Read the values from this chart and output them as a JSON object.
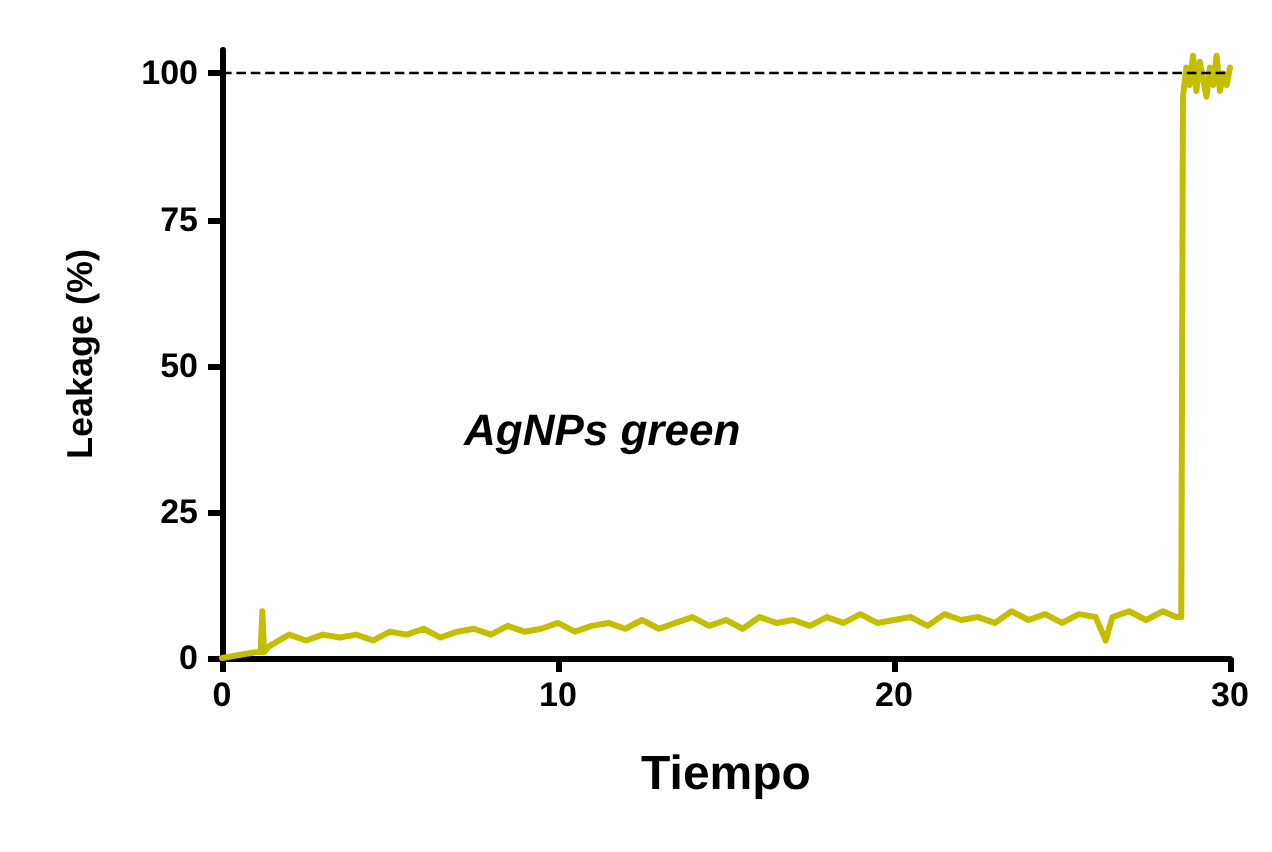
{
  "chart_data": {
    "type": "line",
    "xlabel": "Tiempo",
    "ylabel": "Leakage (%)",
    "annotations": [
      "AgNPs green"
    ],
    "xlim": [
      0,
      30
    ],
    "xticks": [
      0,
      10,
      20,
      30
    ],
    "ylim": [
      0,
      104
    ],
    "yticks": [
      0,
      25,
      50,
      75,
      100
    ],
    "grid": false,
    "marker": "none",
    "line_style": "solid",
    "ref_lines": [
      {
        "axis": "y",
        "value": 100,
        "color": "#000000",
        "line_style": "dashed"
      }
    ],
    "series": [
      {
        "color": "#c4be00",
        "x": [
          0,
          0.5,
          1.0,
          1.15,
          1.2,
          1.25,
          1.4,
          1.7,
          2.0,
          2.5,
          3.0,
          3.5,
          4.0,
          4.5,
          5.0,
          5.5,
          6.0,
          6.5,
          7.0,
          7.5,
          8.0,
          8.5,
          9.0,
          9.5,
          10.0,
          10.5,
          11.0,
          11.5,
          12.0,
          12.5,
          13.0,
          13.5,
          14.0,
          14.5,
          15.0,
          15.5,
          16.0,
          16.5,
          17.0,
          17.5,
          18.0,
          18.5,
          19.0,
          19.5,
          20.0,
          20.5,
          21.0,
          21.5,
          22.0,
          22.5,
          23.0,
          23.5,
          24.0,
          24.5,
          25.0,
          25.5,
          26.0,
          26.3,
          26.5,
          27.0,
          27.5,
          28.0,
          28.4,
          28.55,
          28.6,
          28.7,
          28.8,
          28.9,
          29.0,
          29.1,
          29.2,
          29.3,
          29.4,
          29.5,
          29.6,
          29.7,
          29.8,
          29.9,
          30.0
        ],
        "values": [
          0,
          0.5,
          1,
          1,
          8,
          1,
          2,
          3,
          4,
          3,
          4,
          3.5,
          4,
          3,
          4.5,
          4,
          5,
          3.5,
          4.5,
          5,
          4,
          5.5,
          4.5,
          5,
          6,
          4.5,
          5.5,
          6,
          5,
          6.5,
          5,
          6,
          7,
          5.5,
          6.5,
          5,
          7,
          6,
          6.5,
          5.5,
          7,
          6,
          7.5,
          6,
          6.5,
          7,
          5.5,
          7.5,
          6.5,
          7,
          6,
          8,
          6.5,
          7.5,
          6,
          7.5,
          7,
          3,
          7,
          8,
          6.5,
          8,
          7,
          7,
          96,
          101,
          98,
          103,
          97,
          102,
          99,
          96,
          101,
          98,
          103,
          97,
          100,
          98,
          101
        ]
      }
    ]
  }
}
